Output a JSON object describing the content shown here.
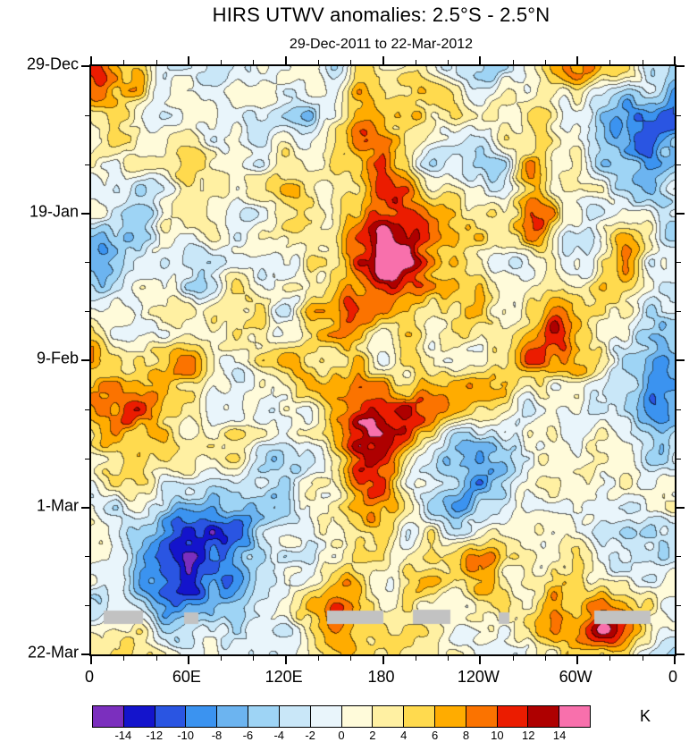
{
  "chart_data": {
    "type": "heatmap",
    "title": "HIRS UTWV anomalies: 2.5°S - 2.5°N",
    "subtitle": "29-Dec-2011 to 22-Mar-2012",
    "x_axis": {
      "tick_labels": [
        "0",
        "60E",
        "120E",
        "180",
        "120W",
        "60W",
        "0"
      ],
      "minor_ticks_per_interval": 2
    },
    "y_axis": {
      "tick_labels": [
        "29-Dec",
        "19-Jan",
        "9-Feb",
        "1-Mar",
        "22-Mar"
      ],
      "minor_ticks_per_interval": 2
    },
    "colorbar": {
      "unit_label": "K",
      "levels": [
        -14,
        -12,
        -10,
        -8,
        -6,
        -4,
        -2,
        0,
        2,
        4,
        6,
        8,
        10,
        12,
        14
      ],
      "tick_labels": [
        "-14",
        "-12",
        "-10",
        "-8",
        "-6",
        "-4",
        "-2",
        "0",
        "2",
        "4",
        "6",
        "8",
        "10",
        "12",
        "14"
      ],
      "colors": [
        "#7B2FBE",
        "#1414CC",
        "#2A55E2",
        "#3B93F0",
        "#6CB4F0",
        "#9ED4F5",
        "#C9E7F8",
        "#E9F5FB",
        "#FFFBDA",
        "#FFF0A2",
        "#FFDA4E",
        "#FFAC00",
        "#FB7300",
        "#EB1C00",
        "#AE0000",
        "#F870AC"
      ]
    },
    "field": {
      "seed": 20120322,
      "level_step": 2,
      "octaves": [
        {
          "freq": 6,
          "amp": 5
        },
        {
          "freq": 12,
          "amp": 4
        },
        {
          "freq": 24,
          "amp": 3
        },
        {
          "freq": 48,
          "amp": 2
        }
      ],
      "features": [
        {
          "x": 0.51,
          "y": 0.34,
          "rx": 0.1,
          "ry": 0.16,
          "amp": 13
        },
        {
          "x": 0.48,
          "y": 0.1,
          "rx": 0.07,
          "ry": 0.09,
          "amp": 8
        },
        {
          "x": 0.47,
          "y": 0.6,
          "rx": 0.09,
          "ry": 0.1,
          "amp": 9
        },
        {
          "x": 0.77,
          "y": 0.28,
          "rx": 0.04,
          "ry": 0.22,
          "amp": 7
        },
        {
          "x": 0.8,
          "y": 0.43,
          "rx": 0.03,
          "ry": 0.04,
          "amp": 6
        },
        {
          "x": 0.17,
          "y": 0.83,
          "rx": 0.14,
          "ry": 0.11,
          "amp": -12
        },
        {
          "x": 0.28,
          "y": 0.33,
          "rx": 0.1,
          "ry": 0.09,
          "amp": -8
        },
        {
          "x": 0.36,
          "y": 0.08,
          "rx": 0.07,
          "ry": 0.07,
          "amp": -6
        },
        {
          "x": 0.95,
          "y": 0.12,
          "rx": 0.07,
          "ry": 0.1,
          "amp": -7
        },
        {
          "x": 0.62,
          "y": 0.75,
          "rx": 0.09,
          "ry": 0.09,
          "amp": -7
        },
        {
          "x": 0.04,
          "y": 0.1,
          "rx": 0.05,
          "ry": 0.1,
          "amp": 7
        },
        {
          "x": 0.42,
          "y": 0.93,
          "rx": 0.06,
          "ry": 0.05,
          "amp": 8
        },
        {
          "x": 0.05,
          "y": 0.6,
          "rx": 0.05,
          "ry": 0.08,
          "amp": 6
        },
        {
          "x": 0.98,
          "y": 0.65,
          "rx": 0.05,
          "ry": 0.14,
          "amp": -6
        },
        {
          "x": 0.9,
          "y": 0.95,
          "rx": 0.07,
          "ry": 0.06,
          "amp": 6
        },
        {
          "x": 0.91,
          "y": 0.33,
          "rx": 0.05,
          "ry": 0.08,
          "amp": 6
        }
      ]
    },
    "missing_data": {
      "color": "#C2C2C2",
      "patches": [
        {
          "x": 0.021,
          "y": 0.926,
          "w": 0.068,
          "h": 0.023
        },
        {
          "x": 0.16,
          "y": 0.928,
          "w": 0.024,
          "h": 0.02
        },
        {
          "x": 0.404,
          "y": 0.926,
          "w": 0.097,
          "h": 0.023
        },
        {
          "x": 0.552,
          "y": 0.924,
          "w": 0.064,
          "h": 0.025
        },
        {
          "x": 0.698,
          "y": 0.928,
          "w": 0.018,
          "h": 0.02
        },
        {
          "x": 0.862,
          "y": 0.926,
          "w": 0.097,
          "h": 0.023
        }
      ]
    }
  }
}
